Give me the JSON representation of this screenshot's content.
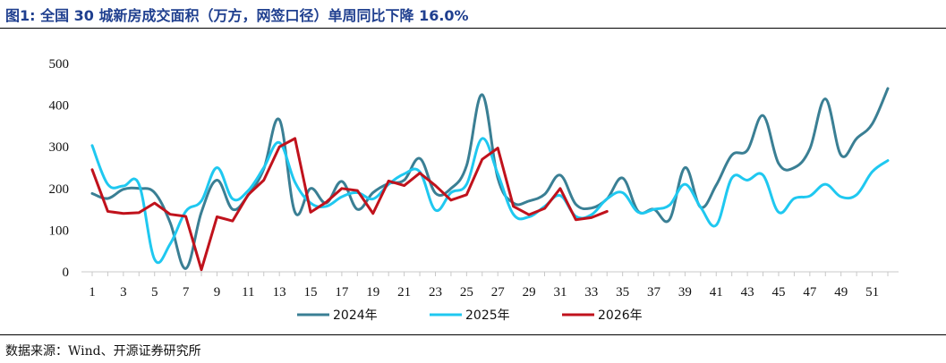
{
  "header": {
    "title": "图1:  全国 30 城新房成交面积（万方，网签口径）单周同比下降 16.0%"
  },
  "footer": {
    "source": "数据来源：Wind、开源证券研究所"
  },
  "chart_data": {
    "type": "line",
    "title": "图1:  全国 30 城新房成交面积（万方，网签口径）单周同比下降 16.0%",
    "xlabel": "",
    "ylabel": "",
    "ylim": [
      0,
      500
    ],
    "xlim": [
      1,
      52
    ],
    "yticks": [
      0,
      100,
      200,
      300,
      400,
      500
    ],
    "xticks": [
      1,
      3,
      5,
      7,
      9,
      11,
      13,
      15,
      17,
      19,
      21,
      23,
      25,
      27,
      29,
      31,
      33,
      35,
      37,
      39,
      41,
      43,
      45,
      47,
      49,
      51
    ],
    "legend_position": "bottom",
    "grid": false,
    "series": [
      {
        "name": "2024年",
        "color": "#3a7f94",
        "x": [
          1,
          2,
          3,
          4,
          5,
          6,
          7,
          8,
          9,
          10,
          11,
          12,
          13,
          14,
          15,
          16,
          17,
          18,
          19,
          20,
          21,
          22,
          23,
          24,
          25,
          26,
          27,
          28,
          29,
          30,
          31,
          32,
          33,
          34,
          35,
          36,
          37,
          38,
          39,
          40,
          41,
          42,
          43,
          44,
          45,
          46,
          47,
          48,
          49,
          50,
          51,
          52
        ],
        "values": [
          188,
          176,
          198,
          200,
          190,
          118,
          8,
          143,
          220,
          150,
          184,
          247,
          365,
          143,
          200,
          165,
          217,
          150,
          190,
          212,
          220,
          272,
          189,
          200,
          255,
          425,
          225,
          165,
          170,
          186,
          232,
          162,
          153,
          175,
          225,
          145,
          150,
          125,
          250,
          155,
          208,
          280,
          292,
          375,
          260,
          250,
          295,
          415,
          280,
          320,
          355,
          440
        ]
      },
      {
        "name": "2025年",
        "color": "#1fc8f0",
        "x": [
          1,
          2,
          3,
          4,
          5,
          6,
          7,
          8,
          9,
          10,
          11,
          12,
          13,
          14,
          15,
          16,
          17,
          18,
          19,
          20,
          21,
          22,
          23,
          24,
          25,
          26,
          27,
          28,
          29,
          30,
          31,
          32,
          33,
          34,
          35,
          36,
          37,
          38,
          39,
          40,
          41,
          42,
          43,
          44,
          45,
          46,
          47,
          48,
          49,
          50,
          51,
          52
        ],
        "values": [
          303,
          210,
          206,
          210,
          30,
          67,
          145,
          170,
          250,
          175,
          195,
          250,
          310,
          215,
          165,
          157,
          180,
          190,
          175,
          210,
          235,
          240,
          148,
          190,
          210,
          320,
          235,
          138,
          132,
          157,
          183,
          133,
          137,
          175,
          190,
          143,
          150,
          160,
          210,
          155,
          112,
          225,
          220,
          232,
          143,
          176,
          182,
          210,
          180,
          185,
          240,
          267
        ]
      },
      {
        "name": "2026年",
        "color": "#c0121c",
        "x": [
          1,
          2,
          3,
          4,
          5,
          6,
          7,
          8,
          9,
          10,
          11,
          12,
          13,
          14,
          15,
          16,
          17,
          18,
          19,
          20,
          21,
          22,
          23,
          24,
          25,
          26,
          27,
          28,
          29,
          30,
          31,
          32,
          33,
          34
        ],
        "values": [
          245,
          145,
          140,
          142,
          165,
          138,
          133,
          5,
          132,
          122,
          185,
          220,
          300,
          320,
          143,
          167,
          200,
          195,
          140,
          218,
          207,
          237,
          207,
          172,
          185,
          270,
          297,
          157,
          137,
          152,
          200,
          125,
          130,
          145
        ]
      }
    ]
  }
}
